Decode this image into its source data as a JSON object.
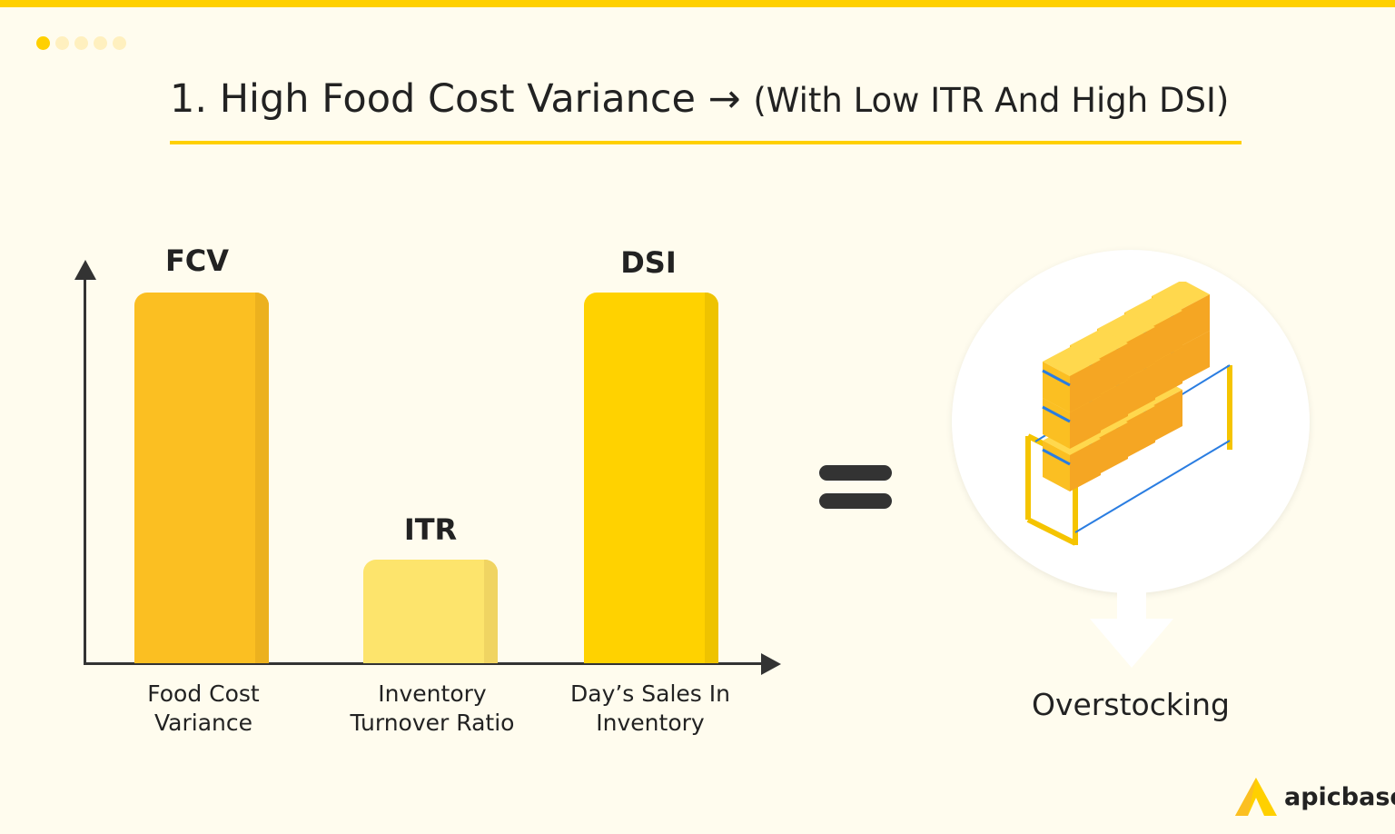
{
  "header": {
    "title_main": "1. High Food Cost Variance",
    "title_arrow": "→",
    "title_sub": "(With Low ITR And High DSI)",
    "progress_dots": {
      "total": 5,
      "active": 1
    }
  },
  "diagram": {
    "bars": [
      {
        "label": "FCV",
        "category": [
          "Food Cost",
          "Variance"
        ],
        "level": "high",
        "color": "#fbbf22",
        "shade": "#ecb11e"
      },
      {
        "label": "ITR",
        "category": [
          "Inventory",
          "Turnover Ratio"
        ],
        "level": "low",
        "color": "#fde46c",
        "shade": "#f0d462"
      },
      {
        "label": "DSI",
        "category": [
          "Day’s Sales In",
          "Inventory"
        ],
        "level": "high",
        "color": "#ffd200",
        "shade": "#eec300"
      }
    ],
    "equals_icon": "equals-sign",
    "illustration_icon": "warehouse-shelves-boxes",
    "result": "Overstocking"
  },
  "brand": {
    "name": "apicbase",
    "accent": "#ffd000"
  }
}
